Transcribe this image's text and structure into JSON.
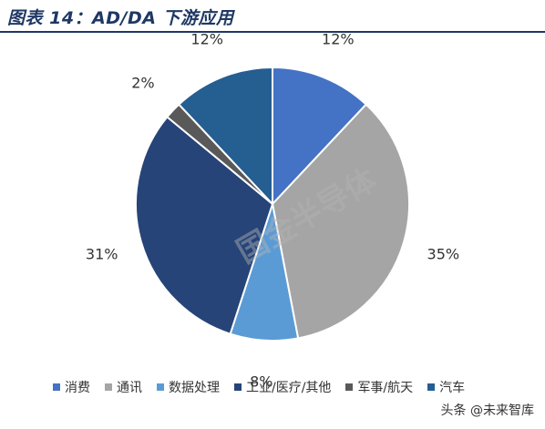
{
  "header": {
    "title": "图表 14：AD/DA 下游应用"
  },
  "watermark": "国金半导体",
  "source_mark": "头条 @未来智库",
  "chart_data": {
    "type": "pie",
    "title": "",
    "categories": [
      "消费",
      "通讯",
      "数据处理",
      "工业/医疗/其他",
      "军事/航天",
      "汽车"
    ],
    "values": [
      12,
      35,
      8,
      31,
      2,
      12
    ],
    "labels": [
      "12%",
      "35%",
      "8%",
      "31%",
      "2%",
      "12%"
    ],
    "colors": [
      "#4472c4",
      "#a5a5a5",
      "#5b9bd5",
      "#264478",
      "#595959",
      "#255e91"
    ],
    "start_angle_deg": 0,
    "direction": "clockwise",
    "legend_position": "bottom"
  }
}
